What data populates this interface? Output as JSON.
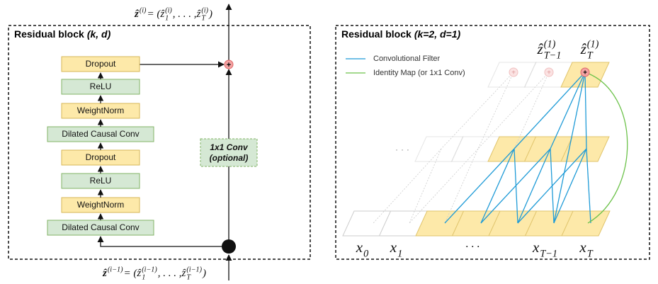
{
  "left": {
    "title": "Residual block",
    "params": "(k, d)",
    "blocks": [
      "Dropout",
      "ReLU",
      "WeightNorm",
      "Dilated Causal Conv",
      "Dropout",
      "ReLU",
      "WeightNorm",
      "Dilated Causal Conv"
    ],
    "skip": {
      "line1": "1x1 Conv",
      "line2": "(optional)"
    },
    "output": {
      "lhs": {
        "base": "ẑ",
        "sup": "(i)"
      },
      "eq": " = (",
      "terms": [
        {
          "base": "ẑ",
          "sub": "1",
          "sup": "(i)"
        },
        {
          "base": "ẑ",
          "sub": "T",
          "sup": "(i)"
        }
      ],
      "sep": ", . . . , ",
      "close": ")"
    },
    "input": {
      "lhs": {
        "base": "ẑ",
        "sup": "(i−1)"
      },
      "eq": " = (",
      "terms": [
        {
          "base": "ẑ",
          "sub": "1",
          "sup": "(i−1)"
        },
        {
          "base": "ẑ",
          "sub": "T",
          "sup": "(i−1)"
        }
      ],
      "sep": ", . . . , ",
      "close": ")"
    }
  },
  "right": {
    "title": "Residual block",
    "params": "(k=2, d=1)",
    "legend": [
      "Convolutional Filter",
      "Identity Map (or 1x1 Conv)"
    ],
    "outputs": [
      {
        "base": "ẑ",
        "sub": "T−1",
        "sup": "(1)"
      },
      {
        "base": "ẑ",
        "sub": "T",
        "sup": "(1)"
      }
    ],
    "hidden_ellipsis": "· · ·",
    "inputs": [
      {
        "base": "x",
        "sub": "0"
      },
      {
        "base": "x",
        "sub": "1"
      },
      {
        "base": "x",
        "sub": "T−1"
      },
      {
        "base": "x",
        "sub": "T"
      }
    ],
    "input_ellipsis": "· · ·"
  }
}
